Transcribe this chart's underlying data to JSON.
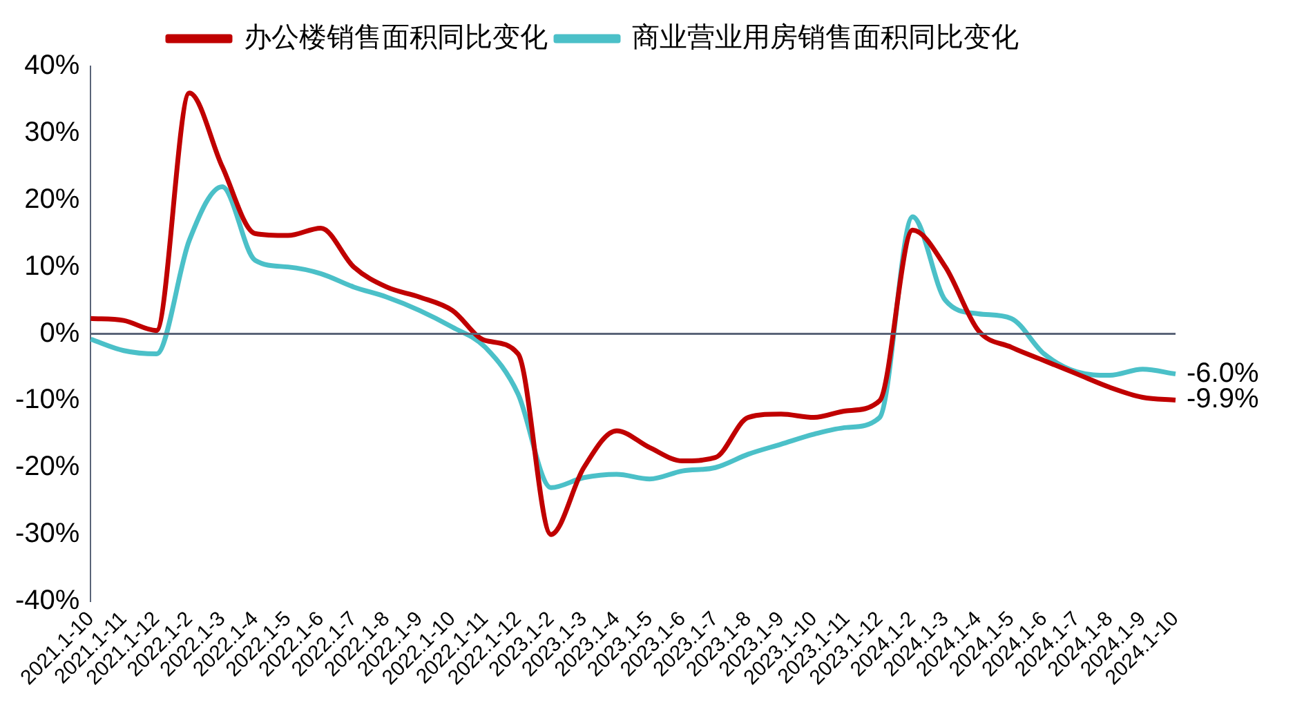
{
  "chart_data": {
    "type": "line",
    "categories": [
      "2021.1-10",
      "2021.1-11",
      "2021.1-12",
      "2022.1-2",
      "2022.1-3",
      "2022.1-4",
      "2022.1-5",
      "2022.1-6",
      "2022.1-7",
      "2022.1-8",
      "2022.1-9",
      "2022.1-10",
      "2022.1-11",
      "2022.1-12",
      "2023.1-2",
      "2023.1-3",
      "2023.1-4",
      "2023.1-5",
      "2023.1-6",
      "2023.1-7",
      "2023.1-8",
      "2023.1-9",
      "2023.1-10",
      "2023.1-11",
      "2023.1-12",
      "2024.1-2",
      "2024.1-3",
      "2024.1-4",
      "2024.1-5",
      "2024.1-6",
      "2024.1-7",
      "2024.1-8",
      "2024.1-9",
      "2024.1-10"
    ],
    "series": [
      {
        "name": "办公楼销售面积同比变化",
        "color": "#c00000",
        "values": [
          2.3,
          2.0,
          0.5,
          36,
          25,
          15,
          14.7,
          15.8,
          10,
          7,
          5.5,
          3.5,
          -1,
          -3,
          -30,
          -20,
          -14.5,
          -17,
          -19,
          -18.5,
          -12.5,
          -12,
          -12.5,
          -11.5,
          -10,
          15.5,
          10,
          0.5,
          -2,
          -4,
          -6,
          -8,
          -9.5,
          -9.9
        ],
        "value_labels": [
          null,
          null,
          null,
          null,
          null,
          null,
          null,
          null,
          null,
          null,
          null,
          null,
          null,
          null,
          null,
          null,
          null,
          null,
          null,
          null,
          null,
          null,
          null,
          null,
          null,
          null,
          null,
          null,
          null,
          null,
          null,
          null,
          null,
          "-9.9%"
        ]
      },
      {
        "name": "商业营业用房销售面积同比变化",
        "color": "#4bc0c8",
        "values": [
          -0.8,
          -2.5,
          -3,
          14,
          22,
          11,
          10,
          9,
          7,
          5.5,
          3.5,
          1,
          -2,
          -9,
          -23,
          -21.5,
          -21,
          -21.7,
          -20.5,
          -20,
          -18,
          -16.5,
          -15,
          -14,
          -12.5,
          17.5,
          5,
          3,
          2.3,
          -3,
          -5.7,
          -6.2,
          -5.3,
          -6.0
        ],
        "value_labels": [
          null,
          null,
          null,
          null,
          null,
          null,
          null,
          null,
          null,
          null,
          null,
          null,
          null,
          null,
          null,
          null,
          null,
          null,
          null,
          null,
          null,
          null,
          null,
          null,
          null,
          null,
          null,
          null,
          null,
          null,
          null,
          null,
          null,
          "-6.0%"
        ]
      }
    ],
    "ylim": [
      -40,
      40
    ],
    "yticks": [
      {
        "value": -40,
        "label": "-40%"
      },
      {
        "value": -30,
        "label": "-30%"
      },
      {
        "value": -20,
        "label": "-20%"
      },
      {
        "value": -10,
        "label": "-10%"
      },
      {
        "value": 0,
        "label": "0%"
      },
      {
        "value": 10,
        "label": "10%"
      },
      {
        "value": 20,
        "label": "20%"
      },
      {
        "value": 30,
        "label": "30%"
      },
      {
        "value": 40,
        "label": "40%"
      }
    ],
    "ref_lines": [
      {
        "axis": "y",
        "value": 0,
        "color": "#5a6478"
      }
    ],
    "legend": "top",
    "grid": false,
    "marker": "none",
    "line_style": "solid"
  }
}
